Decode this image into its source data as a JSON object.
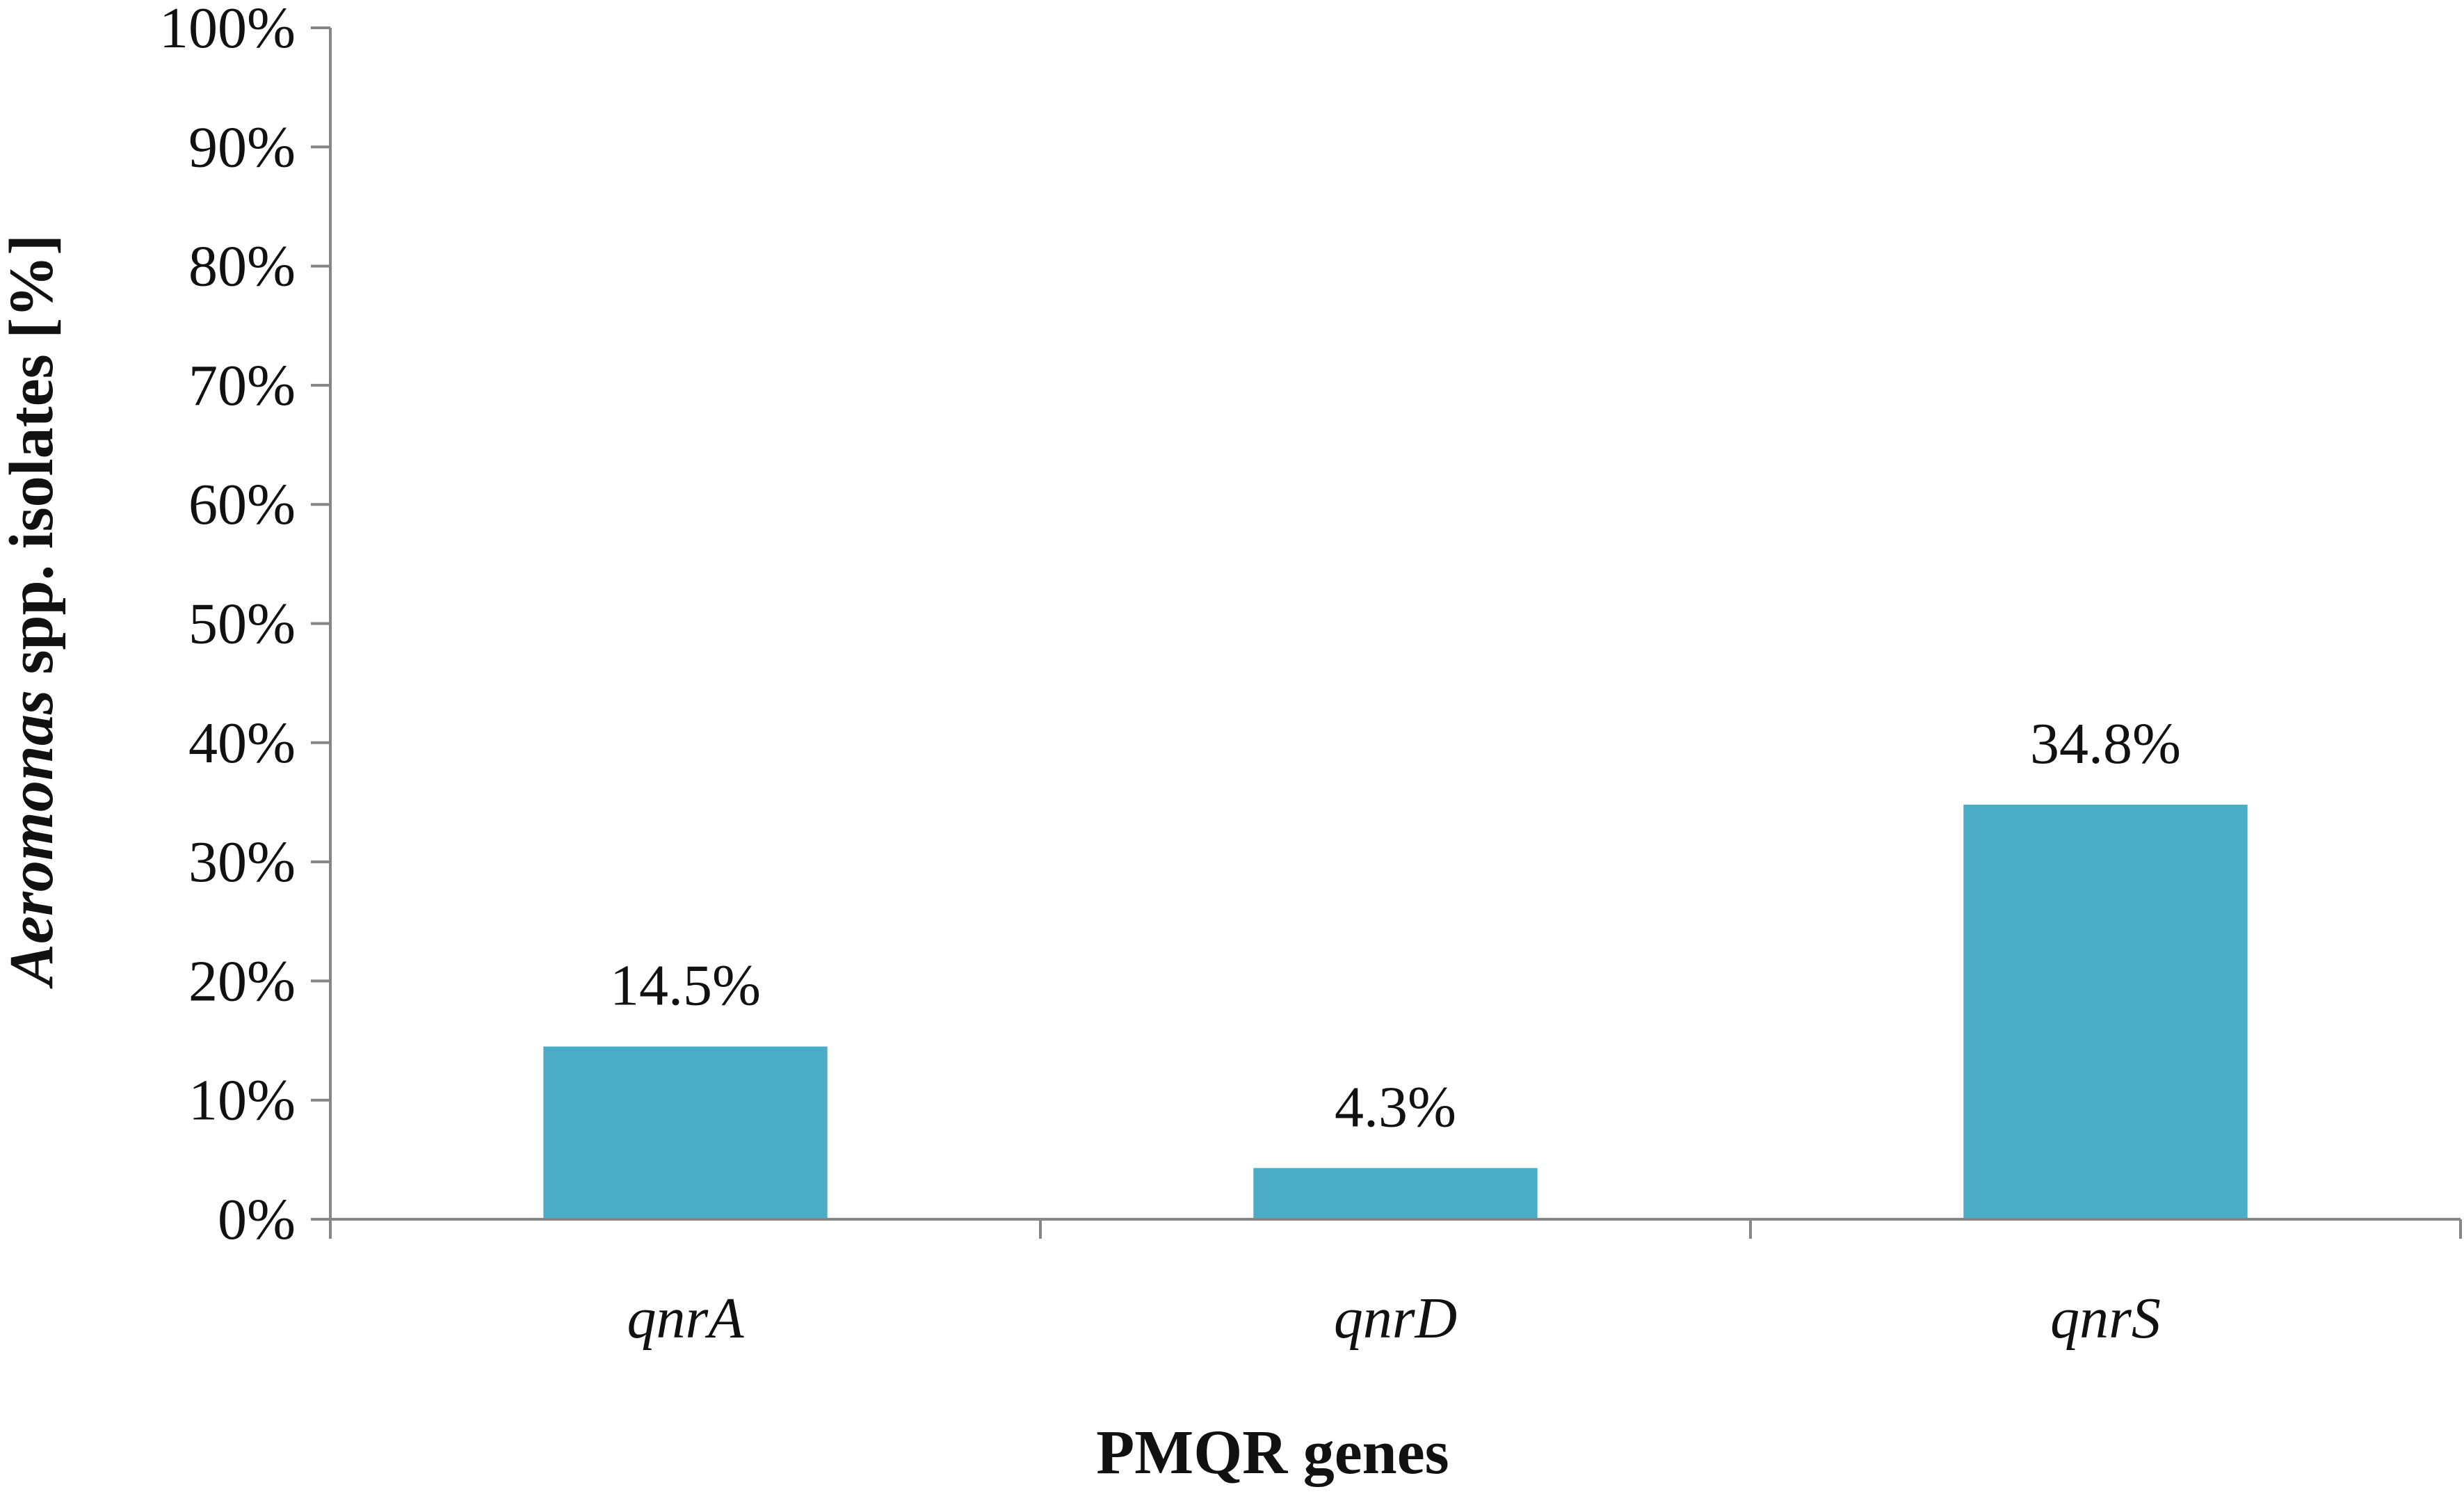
{
  "chart_data": {
    "type": "bar",
    "categories": [
      "qnrA",
      "qnrD",
      "qnrS"
    ],
    "values": [
      14.5,
      4.3,
      34.8
    ],
    "data_labels": [
      "14.5%",
      "4.3%",
      "34.8%"
    ],
    "title": "",
    "xlabel": "PMQR genes",
    "ylabel_italic": "Aeromonas",
    "ylabel_rest": " spp. isolates [%]",
    "ylim": [
      0,
      100
    ],
    "yticks": [
      "0%",
      "10%",
      "20%",
      "30%",
      "40%",
      "50%",
      "60%",
      "70%",
      "80%",
      "90%",
      "100%"
    ],
    "grid": false,
    "legend": "none",
    "bar_color": "#4bacc6",
    "axis_color": "#868686"
  }
}
